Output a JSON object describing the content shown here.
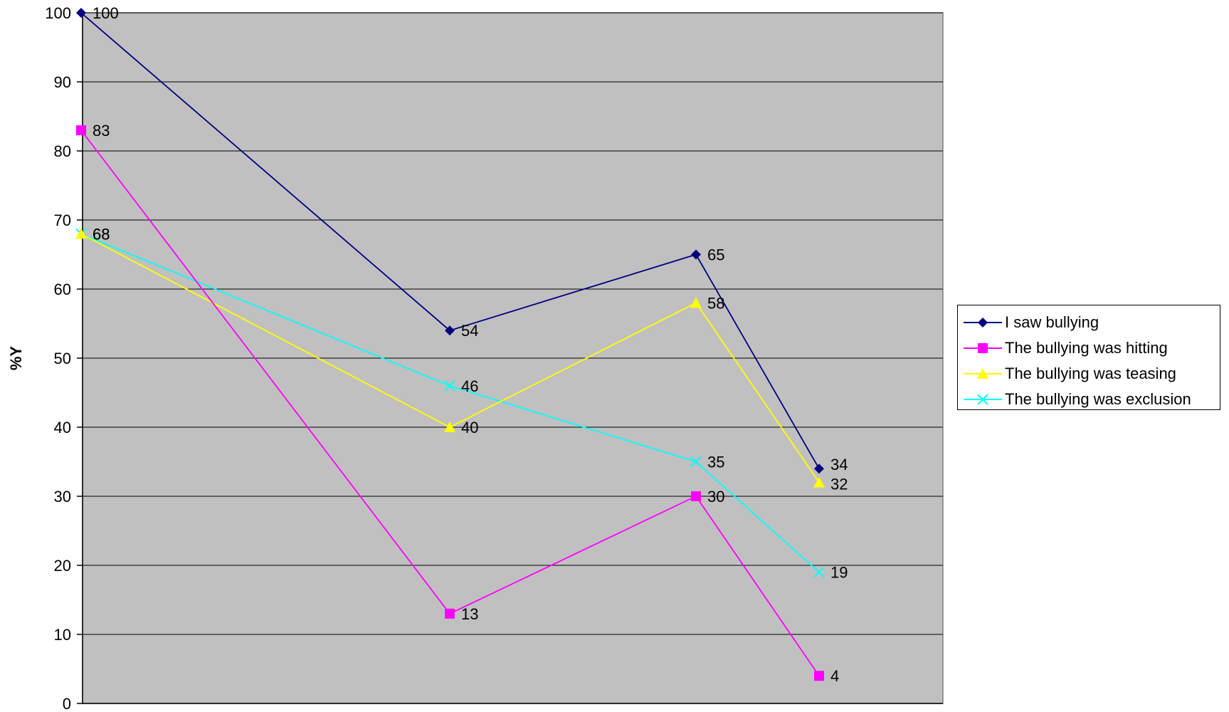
{
  "chart_data": {
    "type": "line",
    "title": "",
    "xlabel": "",
    "ylabel": "%Y",
    "ylim": [
      0,
      100
    ],
    "yticks": [
      "0",
      "10",
      "20",
      "30",
      "40",
      "50",
      "60",
      "70",
      "80",
      "90",
      "100"
    ],
    "x": [
      1,
      2,
      3,
      4
    ],
    "grid": "horizontal",
    "legend_position": "right",
    "plot_background": "#c0c0c0",
    "series": [
      {
        "name": "I saw bullying",
        "values": [
          100,
          54,
          65,
          34
        ],
        "labels": [
          "100",
          "54",
          "65",
          "34"
        ],
        "color": "#000080",
        "marker": "diamond"
      },
      {
        "name": "The bullying was hitting",
        "values": [
          83,
          13,
          30,
          4
        ],
        "labels": [
          "83",
          "13",
          "30",
          "4"
        ],
        "color": "#ff00ff",
        "marker": "square"
      },
      {
        "name": "The bullying was teasing",
        "values": [
          68,
          40,
          58,
          32
        ],
        "labels": [
          "68",
          "40",
          "58",
          "32"
        ],
        "color": "#ffff00",
        "marker": "triangle"
      },
      {
        "name": "The bullying was exclusion",
        "values": [
          68,
          46,
          35,
          19
        ],
        "labels": [
          "68",
          "46",
          "35",
          "19"
        ],
        "color": "#00ffff",
        "marker": "x"
      }
    ]
  }
}
